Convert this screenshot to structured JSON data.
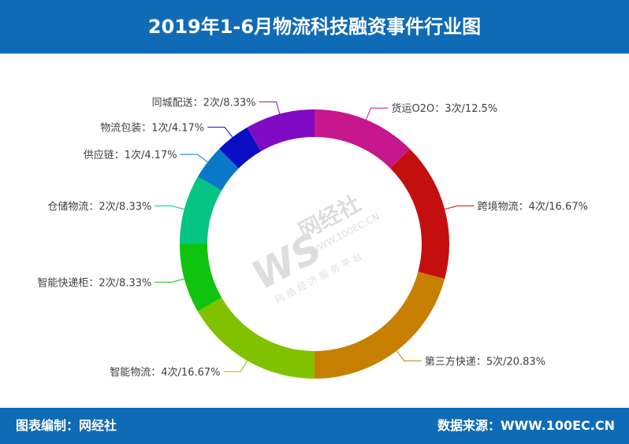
{
  "header": {
    "title": "2019年1-6月物流科技融资事件行业图"
  },
  "footer": {
    "left": "图表编制：网经社",
    "right": "数据来源：WWW.100EC.CN"
  },
  "watermark": {
    "mark": "WS",
    "name": "网经社",
    "url": "WWW.100EC.CN",
    "tagline": "网 络 经 济 服 务 平 台"
  },
  "chart_data": {
    "type": "pie",
    "title": "2019年1-6月物流科技融资事件行业图",
    "unit": "次",
    "categories": [
      "货运O2O",
      "跨境物流",
      "第三方快递",
      "智能物流",
      "智能快递柜",
      "仓储物流",
      "供应链",
      "物流包装",
      "同城配送"
    ],
    "values": [
      3,
      4,
      5,
      4,
      2,
      2,
      1,
      1,
      2
    ],
    "labels": [
      "货运O2O：3次/12.5%",
      "跨境物流：4次/16.67%",
      "第三方快递：5次/20.83%",
      "智能物流：4次/16.67%",
      "智能快递柜：2次/8.33%",
      "仓储物流：2次/8.33%",
      "供应链：1次/4.17%",
      "物流包装：1次/4.17%",
      "同城配送：2次/8.33%"
    ],
    "colors": [
      "#c6178c",
      "#c40f0f",
      "#c77f00",
      "#80c200",
      "#0fc30f",
      "#05c585",
      "#0b78c8",
      "#0a0fc6",
      "#7f0cc4"
    ]
  }
}
